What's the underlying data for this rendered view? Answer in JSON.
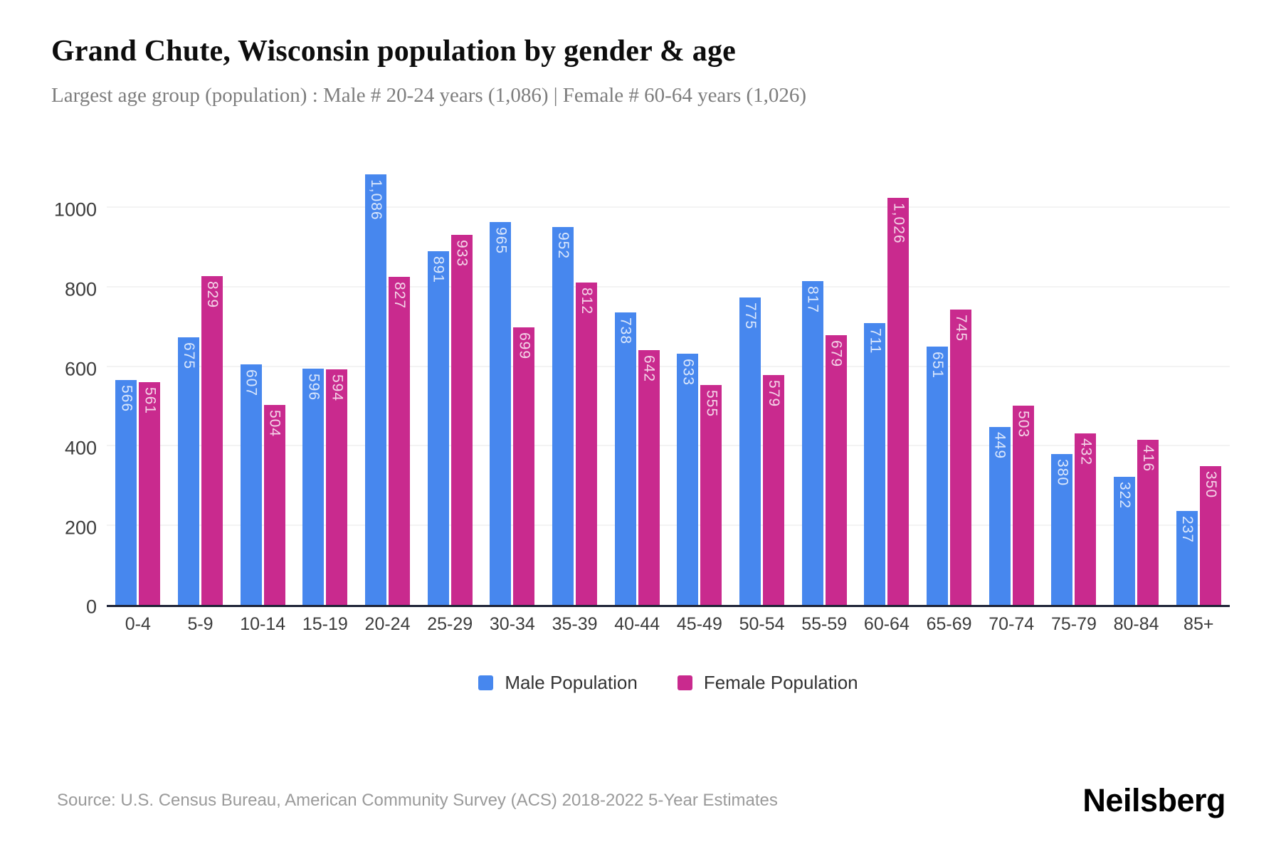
{
  "header": {
    "title": "Grand Chute, Wisconsin population by gender & age",
    "subtitle": "Largest age group (population) : Male # 20-24 years (1,086) | Female # 60-64 years (1,026)"
  },
  "chart_data": {
    "type": "bar",
    "title": "Grand Chute, Wisconsin population by gender & age",
    "categories": [
      "0-4",
      "5-9",
      "10-14",
      "15-19",
      "20-24",
      "25-29",
      "30-34",
      "35-39",
      "40-44",
      "45-49",
      "50-54",
      "55-59",
      "60-64",
      "65-69",
      "70-74",
      "75-79",
      "80-84",
      "85+"
    ],
    "series": [
      {
        "name": "Male Population",
        "color": "#4787ee",
        "values": [
          566,
          675,
          607,
          596,
          1086,
          891,
          965,
          952,
          738,
          633,
          775,
          817,
          711,
          651,
          449,
          380,
          322,
          237
        ]
      },
      {
        "name": "Female Population",
        "color": "#c92a8e",
        "values": [
          561,
          829,
          504,
          594,
          827,
          933,
          699,
          812,
          642,
          555,
          579,
          679,
          1026,
          745,
          503,
          432,
          416,
          350
        ]
      }
    ],
    "xlabel": "",
    "ylabel": "",
    "yticks": [
      0,
      200,
      400,
      600,
      800,
      1000
    ],
    "ylim": [
      0,
      1130
    ],
    "grid": true,
    "legend_position": "bottom",
    "bar_label_color": "rgba(255,255,255,0.80)"
  },
  "footer": {
    "source": "Source: U.S. Census Bureau, American Community Survey (ACS) 2018-2022 5-Year Estimates",
    "brand": "Neilsberg"
  }
}
